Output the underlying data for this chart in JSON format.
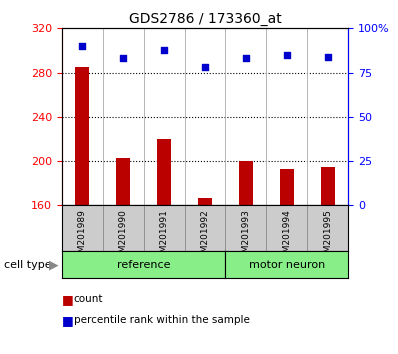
{
  "title": "GDS2786 / 173360_at",
  "samples": [
    "GSM201989",
    "GSM201990",
    "GSM201991",
    "GSM201992",
    "GSM201993",
    "GSM201994",
    "GSM201995"
  ],
  "count_values": [
    285,
    203,
    220,
    167,
    200,
    193,
    195
  ],
  "percentile_values": [
    90,
    83,
    88,
    78,
    83,
    85,
    84
  ],
  "ylim_left": [
    160,
    320
  ],
  "ylim_right": [
    0,
    100
  ],
  "yticks_left": [
    160,
    200,
    240,
    280,
    320
  ],
  "yticks_right": [
    0,
    25,
    50,
    75,
    100
  ],
  "ytick_labels_right": [
    "0",
    "25",
    "50",
    "75",
    "100%"
  ],
  "grid_values": [
    200,
    240,
    280
  ],
  "bar_color": "#bb0000",
  "dot_color": "#0000cc",
  "group1_label": "reference",
  "group2_label": "motor neuron",
  "group1_count": 4,
  "group2_count": 3,
  "group_bg_color": "#88ee88",
  "tick_bg_color": "#cccccc",
  "legend_count_label": "count",
  "legend_percentile_label": "percentile rank within the sample",
  "cell_type_label": "cell type"
}
